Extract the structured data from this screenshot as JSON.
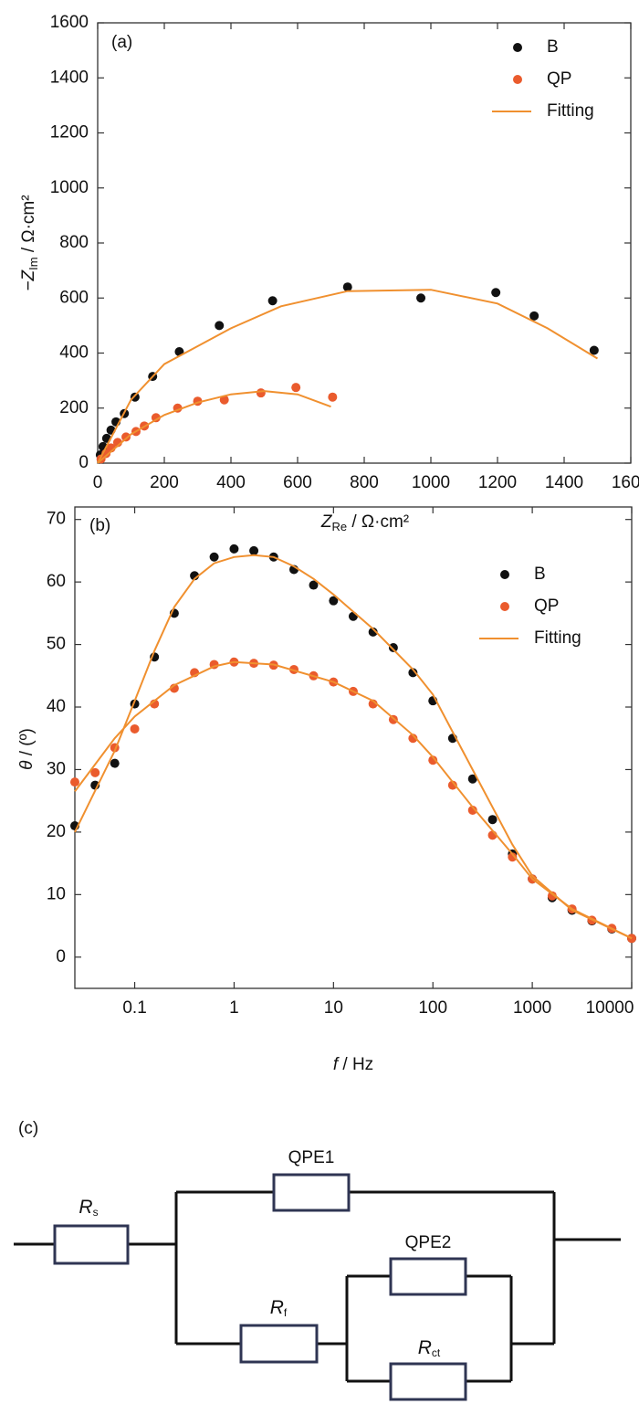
{
  "chart_data": [
    {
      "type": "scatter",
      "panel": "(a)",
      "xlabel": [
        "Z",
        "Re",
        " / Ω·cm²"
      ],
      "ylabel": [
        "−Z",
        "Im",
        " / Ω·cm²"
      ],
      "xlim": [
        0,
        1600
      ],
      "ylim": [
        0,
        1600
      ],
      "xticks": [
        0,
        200,
        400,
        600,
        800,
        1000,
        1200,
        1400,
        1600
      ],
      "yticks": [
        0,
        200,
        400,
        600,
        800,
        1000,
        1200,
        1400,
        1600
      ],
      "series": [
        {
          "name": "B",
          "mark": "dot",
          "color": "#111111",
          "x": [
            8,
            16,
            27,
            40,
            55,
            80,
            112,
            165,
            245,
            365,
            525,
            750,
            970,
            1195,
            1310,
            1490
          ],
          "y": [
            30,
            60,
            90,
            120,
            150,
            180,
            240,
            315,
            405,
            500,
            590,
            640,
            600,
            620,
            535,
            410
          ]
        },
        {
          "name": "QP",
          "mark": "dot",
          "color": "#ea5b2d",
          "x": [
            10,
            25,
            40,
            60,
            85,
            115,
            140,
            175,
            240,
            300,
            380,
            490,
            595,
            705
          ],
          "y": [
            15,
            35,
            55,
            75,
            95,
            115,
            135,
            165,
            200,
            225,
            230,
            255,
            275,
            240
          ]
        },
        {
          "name": "Fitting",
          "mark": "line",
          "color": "#f0902f",
          "x": [
            0,
            100,
            200,
            400,
            550,
            750,
            1000,
            1200,
            1350,
            1500
          ],
          "y": [
            0,
            230,
            360,
            490,
            570,
            625,
            630,
            580,
            490,
            380
          ]
        },
        {
          "name": "Fitting",
          "mark": "line",
          "color": "#f0902f",
          "x": [
            0,
            100,
            200,
            300,
            400,
            500,
            600,
            700
          ],
          "y": [
            0,
            105,
            175,
            220,
            250,
            262,
            250,
            205
          ]
        }
      ]
    },
    {
      "type": "scatter",
      "panel": "(b)",
      "xscale": "log",
      "xlabel": [
        "f",
        " / Hz"
      ],
      "ylabel": [
        "θ",
        " / (º)"
      ],
      "xlim": [
        0.025,
        10000
      ],
      "ylim": [
        -5,
        72
      ],
      "xticks": [
        0.1,
        1,
        10,
        100,
        1000,
        10000
      ],
      "yticks": [
        0,
        10,
        20,
        30,
        40,
        50,
        60,
        70
      ],
      "series": [
        {
          "name": "B",
          "mark": "dot",
          "color": "#111111",
          "x": [
            0.025,
            0.04,
            0.063,
            0.1,
            0.158,
            0.25,
            0.4,
            0.63,
            1,
            1.58,
            2.5,
            4,
            6.3,
            10,
            15.8,
            25,
            40,
            63,
            100,
            158,
            251,
            398,
            631,
            1000,
            1585,
            2512,
            3981,
            6310,
            10000
          ],
          "y": [
            21,
            27.5,
            31,
            40.5,
            48,
            55,
            61,
            64,
            65.3,
            65,
            64,
            62,
            59.5,
            57,
            54.5,
            52,
            49.5,
            45.5,
            41,
            35,
            28.5,
            22,
            16.5,
            12.5,
            9.5,
            7.5,
            5.8,
            4.5,
            3
          ]
        },
        {
          "name": "QP",
          "mark": "dot",
          "color": "#ea5b2d",
          "x": [
            0.025,
            0.04,
            0.063,
            0.1,
            0.158,
            0.25,
            0.4,
            0.63,
            1,
            1.58,
            2.5,
            4,
            6.3,
            10,
            15.8,
            25,
            40,
            63,
            100,
            158,
            251,
            398,
            631,
            1000,
            1585,
            2512,
            3981,
            6310,
            10000
          ],
          "y": [
            28,
            29.5,
            33.5,
            36.5,
            40.5,
            43,
            45.5,
            46.8,
            47.2,
            47,
            46.7,
            46,
            45,
            44,
            42.5,
            40.5,
            38,
            35,
            31.5,
            27.5,
            23.5,
            19.5,
            16,
            12.5,
            9.8,
            7.7,
            5.9,
            4.6,
            3
          ]
        },
        {
          "name": "Fitting",
          "mark": "line",
          "color": "#f0902f",
          "x": [
            0.025,
            0.063,
            0.1,
            0.158,
            0.25,
            0.4,
            0.63,
            1,
            1.58,
            2.5,
            4,
            6.3,
            10,
            25,
            63,
            100,
            251,
            631,
            1000,
            2512,
            10000
          ],
          "y": [
            20,
            33,
            41,
            49,
            56,
            60.5,
            63,
            64,
            64.3,
            64,
            62.5,
            60.5,
            58,
            52.5,
            46,
            42,
            30,
            18,
            13,
            7.5,
            3
          ]
        },
        {
          "name": "Fitting",
          "mark": "line",
          "color": "#f0902f",
          "x": [
            0.025,
            0.063,
            0.1,
            0.25,
            0.63,
            1,
            2.5,
            10,
            25,
            63,
            100,
            251,
            631,
            1000,
            2512,
            10000
          ],
          "y": [
            26.5,
            35,
            38.5,
            43.5,
            46.5,
            47.2,
            46.8,
            44,
            41,
            35.5,
            32,
            24,
            16.5,
            12.5,
            7.7,
            3
          ]
        }
      ]
    }
  ],
  "circuit": {
    "panel": "(c)",
    "elements": [
      [
        "QPE1"
      ],
      [
        "R",
        "s"
      ],
      [
        "QPE2"
      ],
      [
        "R",
        "f"
      ],
      [
        "R",
        "ct"
      ]
    ]
  }
}
